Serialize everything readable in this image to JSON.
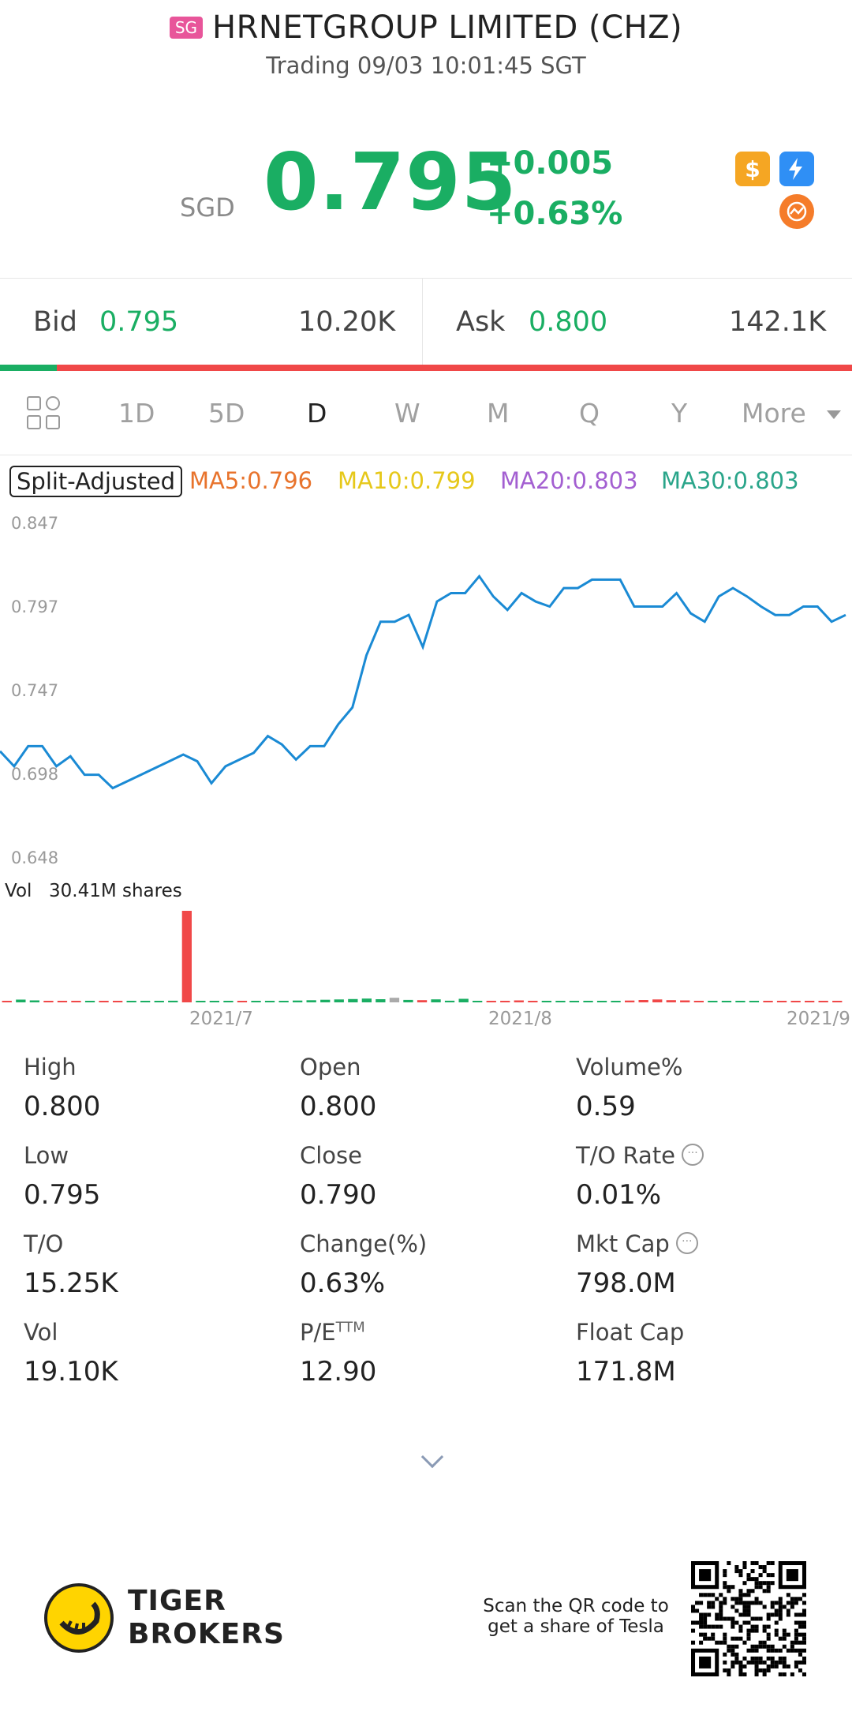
{
  "header": {
    "market_badge": "SG",
    "title": "HRNETGROUP LIMITED (CHZ)",
    "status": "Trading 09/03 10:01:45 SGT"
  },
  "quote": {
    "currency": "SGD",
    "price": "0.795",
    "change": "+0.005",
    "change_pct": "+0.63%",
    "icons": [
      "dollar-icon",
      "flash-level1-icon",
      "rotate-chart-icon"
    ]
  },
  "bid_ask": {
    "bid_label": "Bid",
    "bid_price": "0.795",
    "bid_volume": "10.20K",
    "ask_label": "Ask",
    "ask_price": "0.800",
    "ask_volume": "142.1K",
    "bid_ratio": 0.067
  },
  "tabs": {
    "items": [
      "1D",
      "5D",
      "D",
      "W",
      "M",
      "Q",
      "Y"
    ],
    "active": "D",
    "more_label": "More"
  },
  "indicators": {
    "split_label": "Split-Adjusted",
    "ma5": "MA5:0.796",
    "ma10": "MA10:0.799",
    "ma20": "MA20:0.803",
    "ma30": "MA30:0.803",
    "colors": {
      "ma5": "#e8732c",
      "ma10": "#e6c81a",
      "ma20": "#a35fd1",
      "ma30": "#2aa58a"
    }
  },
  "chart_data": {
    "type": "line",
    "y_ticks": [
      "0.847",
      "0.797",
      "0.747",
      "0.698",
      "0.648"
    ],
    "ylim": [
      0.648,
      0.847
    ],
    "x_ticks": [
      "2021/7",
      "2021/8",
      "2021/9"
    ],
    "line_color": "#1a8ad4",
    "values": [
      0.711,
      0.702,
      0.714,
      0.714,
      0.702,
      0.708,
      0.697,
      0.697,
      0.689,
      0.693,
      0.697,
      0.701,
      0.705,
      0.709,
      0.705,
      0.692,
      0.702,
      0.706,
      0.71,
      0.72,
      0.715,
      0.706,
      0.714,
      0.714,
      0.727,
      0.737,
      0.768,
      0.788,
      0.788,
      0.792,
      0.773,
      0.8,
      0.805,
      0.805,
      0.815,
      0.803,
      0.795,
      0.805,
      0.8,
      0.797,
      0.808,
      0.808,
      0.813,
      0.813,
      0.813,
      0.797,
      0.797,
      0.797,
      0.805,
      0.793,
      0.788,
      0.803,
      0.808,
      0.803,
      0.797,
      0.792,
      0.792,
      0.797,
      0.797,
      0.788,
      0.792
    ],
    "volume": {
      "label": "Vol",
      "total": "30.41M shares",
      "colors": [
        "r",
        "g",
        "g",
        "r",
        "r",
        "r",
        "g",
        "r",
        "r",
        "g",
        "g",
        "g",
        "g",
        "r",
        "g",
        "g",
        "g",
        "r",
        "g",
        "g",
        "g",
        "g",
        "g",
        "g",
        "g",
        "g",
        "g",
        "g",
        "n",
        "g",
        "r",
        "g",
        "g",
        "g",
        "g",
        "r",
        "r",
        "r",
        "r",
        "g",
        "g",
        "g",
        "g",
        "g",
        "g",
        "r",
        "r",
        "r",
        "r",
        "r",
        "r",
        "g",
        "g",
        "g",
        "g",
        "r",
        "r",
        "r",
        "r",
        "r",
        "r"
      ],
      "values": [
        1.2,
        2.5,
        1.8,
        1.0,
        0.8,
        0.6,
        0.5,
        0.7,
        0.4,
        0.6,
        0.9,
        1.1,
        1.5,
        82,
        1.0,
        0.8,
        1.4,
        0.6,
        0.5,
        0.7,
        1.3,
        1.6,
        1.9,
        2.3,
        2.6,
        3.0,
        3.4,
        2.8,
        4.1,
        2.2,
        2.0,
        2.7,
        1.5,
        3.2,
        1.4,
        1.1,
        0.9,
        1.8,
        1.3,
        0.9,
        0.7,
        0.8,
        0.6,
        0.5,
        0.7,
        1.6,
        2.1,
        2.6,
        2.0,
        1.8,
        1.3,
        1.2,
        0.9,
        1.0,
        0.7,
        0.8,
        0.6,
        0.5,
        0.9,
        0.7,
        0.6
      ]
    }
  },
  "stats": [
    {
      "label": "High",
      "value": "0.800"
    },
    {
      "label": "Open",
      "value": "0.800"
    },
    {
      "label": "Volume%",
      "value": "0.59"
    },
    {
      "label": "Low",
      "value": "0.795"
    },
    {
      "label": "Close",
      "value": "0.790"
    },
    {
      "label": "T/O Rate",
      "value": "0.01%"
    },
    {
      "label": "T/O",
      "value": "15.25K"
    },
    {
      "label": "Change(%)",
      "value": "0.63%"
    },
    {
      "label": "Mkt Cap",
      "value": "798.0M"
    },
    {
      "label": "Vol",
      "value": "19.10K"
    },
    {
      "label": "P/E",
      "value": "12.90",
      "superscript": "TTM"
    },
    {
      "label": "Float Cap",
      "value": "171.8M"
    }
  ],
  "footer": {
    "brand_line1": "TIGER",
    "brand_line2": "BROKERS",
    "scan_line1": "Scan the QR code to",
    "scan_line2": "get a share of Tesla"
  },
  "colors": {
    "up": "#1aae63",
    "down": "#f04848"
  }
}
